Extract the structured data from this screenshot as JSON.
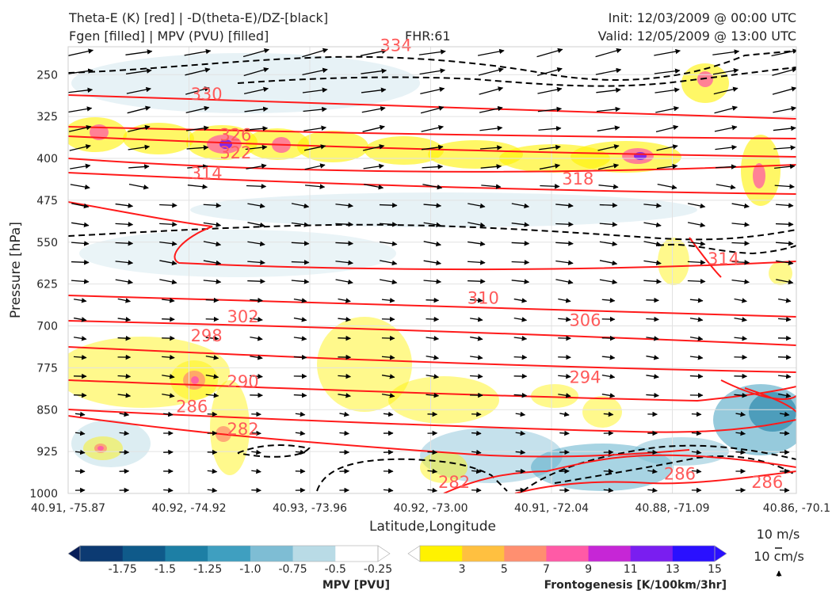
{
  "header": {
    "title_line1": "Theta-E (K) [red] | -D(theta-E)/DZ-[black]",
    "title_line2": "Fgen [filled] | MPV (PVU) [filled]",
    "fhr": "FHR:61",
    "init": "Init: 12/03/2009 @ 00:00 UTC",
    "valid": "Valid: 12/05/2009 @ 13:00 UTC"
  },
  "chart_data": {
    "type": "cross-section",
    "xlabel": "Latitude,Longitude",
    "ylabel": "Pressure [hPa]",
    "ylim": [
      1000,
      200
    ],
    "y_ticks": [
      250,
      325,
      400,
      475,
      550,
      625,
      700,
      775,
      850,
      925,
      1000
    ],
    "x_ticks": [
      "40.91, -75.87",
      "40.92, -74.92",
      "40.93, -73.96",
      "40.92, -73.00",
      "40.91, -72.04",
      "40.88, -71.09",
      "40.86, -70.1"
    ],
    "grid": true,
    "theta_e_contours": [
      {
        "label": "334",
        "x": 0.45,
        "p": 198
      },
      {
        "label": "330",
        "x": 0.19,
        "p": 285
      },
      {
        "label": "326",
        "x": 0.23,
        "p": 358
      },
      {
        "label": "322",
        "x": 0.23,
        "p": 390
      },
      {
        "label": "314",
        "x": 0.19,
        "p": 427
      },
      {
        "label": "318",
        "x": 0.7,
        "p": 437
      },
      {
        "label": "310",
        "x": 0.57,
        "p": 650
      },
      {
        "label": "302",
        "x": 0.24,
        "p": 684
      },
      {
        "label": "298",
        "x": 0.19,
        "p": 718
      },
      {
        "label": "306",
        "x": 0.71,
        "p": 690
      },
      {
        "label": "290",
        "x": 0.24,
        "p": 800
      },
      {
        "label": "294",
        "x": 0.71,
        "p": 792
      },
      {
        "label": "286",
        "x": 0.17,
        "p": 845
      },
      {
        "label": "282",
        "x": 0.24,
        "p": 885
      },
      {
        "label": "282",
        "x": 0.53,
        "p": 980
      },
      {
        "label": "286",
        "x": 0.84,
        "p": 965
      },
      {
        "label": "286",
        "x": 0.96,
        "p": 980
      },
      {
        "label": "314",
        "x": 0.9,
        "p": 580
      }
    ],
    "wind_scale": {
      "horizontal": "10 m/s",
      "vertical": "10 cm/s"
    },
    "colorbars": [
      {
        "label": "MPV [PVU]",
        "ticks": [
          "-1.75",
          "-1.5",
          "-1.25",
          "-1.0",
          "-0.75",
          "-0.5",
          "-0.25"
        ],
        "colors": [
          "#081d58",
          "#0c3a72",
          "#0f5a8a",
          "#1d7fa5",
          "#3f9fc0",
          "#7ebdd4",
          "#b9dbe6",
          "#ffffff"
        ]
      },
      {
        "label": "Frontogenesis [K/100km/3hr]",
        "ticks": [
          "3",
          "5",
          "7",
          "9",
          "11",
          "13",
          "15"
        ],
        "colors": [
          "#ffffff",
          "#fff200",
          "#ffc040",
          "#ff8f70",
          "#ff5aa6",
          "#c626d6",
          "#7a1ef0",
          "#2a10ff"
        ]
      }
    ]
  },
  "colors": {
    "theta_e": "#ff1a1a",
    "theta_e_label": "#ff5a5a",
    "stability": "#000000",
    "grid": "#e2e2e2"
  }
}
